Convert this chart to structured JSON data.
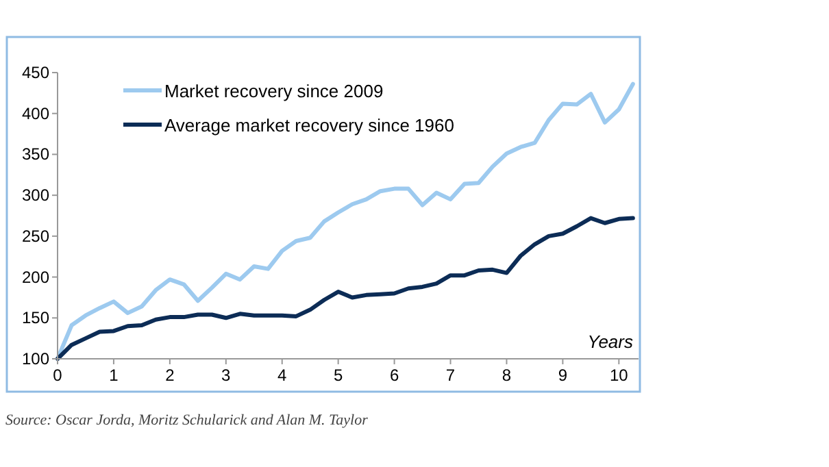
{
  "chart_data": {
    "type": "line",
    "xlabel": "Years",
    "x": [
      0,
      0.25,
      0.5,
      0.75,
      1,
      1.25,
      1.5,
      1.75,
      2,
      2.25,
      2.5,
      2.75,
      3,
      3.25,
      3.5,
      3.75,
      4,
      4.25,
      4.5,
      4.75,
      5,
      5.25,
      5.5,
      5.75,
      6,
      6.25,
      6.5,
      6.75,
      7,
      7.25,
      7.5,
      7.75,
      8,
      8.25,
      8.5,
      8.75,
      9,
      9.25,
      9.5,
      9.75,
      10,
      10.25
    ],
    "series": [
      {
        "name": "Market recovery since 2009",
        "color": "#9dcaef",
        "values": [
          100,
          141,
          153,
          162,
          170,
          156,
          164,
          184,
          197,
          191,
          171,
          187,
          204,
          197,
          213,
          210,
          232,
          244,
          248,
          268,
          279,
          289,
          295,
          305,
          308,
          308,
          288,
          303,
          295,
          314,
          315,
          335,
          351,
          359,
          364,
          392,
          412,
          411,
          424,
          389,
          405,
          436
        ]
      },
      {
        "name": "Average market recovery since 1960",
        "color": "#0c2c56",
        "values": [
          100,
          117,
          125,
          133,
          134,
          140,
          141,
          148,
          151,
          151,
          154,
          154,
          150,
          155,
          153,
          153,
          153,
          152,
          160,
          172,
          182,
          175,
          178,
          179,
          180,
          186,
          188,
          192,
          202,
          202,
          208,
          209,
          205,
          226,
          240,
          250,
          253,
          262,
          272,
          266,
          271,
          272
        ]
      }
    ],
    "xlim": [
      0,
      10.35
    ],
    "xticks": [
      0,
      1,
      2,
      3,
      4,
      5,
      6,
      7,
      8,
      9,
      10
    ],
    "ylim": [
      100,
      450
    ],
    "yticks": [
      100,
      150,
      200,
      250,
      300,
      350,
      400,
      450
    ],
    "grid": false,
    "legend": "top left",
    "marker": "none",
    "line_style": "solid",
    "annotations": [
      "Source: Oscar Jorda, Moritz Schularick and Alan M. Taylor"
    ]
  }
}
